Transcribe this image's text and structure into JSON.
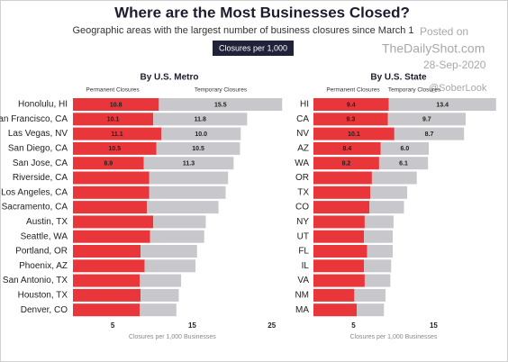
{
  "header": {
    "title": "Where are the Most Businesses Closed?",
    "subtitle": "Geographic areas with the largest number of business closures since March 1",
    "legend_label": "Closures per 1,000",
    "watermark": [
      "Posted on",
      "TheDailyShot.com",
      "28-Sep-2020",
      "@SoberLook"
    ]
  },
  "chart_data": [
    {
      "type": "stacked-barh",
      "title": "By U.S. Metro",
      "xlabel": "Closures per 1,000 Businesses",
      "categories": [
        "Honolulu, HI",
        "San Francisco, CA",
        "Las Vegas, NV",
        "San Diego, CA",
        "San Jose, CA",
        "Riverside, CA",
        "Los Angeles, CA",
        "Sacramento, CA",
        "Austin, TX",
        "Seattle, WA",
        "Portland, OR",
        "Phoenix, AZ",
        "San Antonio, TX",
        "Houston, TX",
        "Denver, CO"
      ],
      "series": [
        {
          "name": "Permanent Closures",
          "color": "#e8363a",
          "values": [
            10.8,
            10.1,
            11.1,
            10.5,
            8.9,
            9.6,
            9.6,
            9.3,
            10.1,
            9.7,
            8.5,
            9.0,
            8.4,
            8.5,
            8.4
          ],
          "value_labels": [
            "10.8",
            "10.1",
            "11.1",
            "10.5",
            "8.9",
            null,
            null,
            null,
            null,
            null,
            null,
            null,
            null,
            null,
            null
          ]
        },
        {
          "name": "Temporary Closures",
          "color": "#c8c8cc",
          "values": [
            15.5,
            11.8,
            10.0,
            10.5,
            11.3,
            9.9,
            9.6,
            9.0,
            6.6,
            6.8,
            7.1,
            6.4,
            5.2,
            4.8,
            4.6
          ],
          "value_labels": [
            "15.5",
            "11.8",
            "10.0",
            "10.5",
            "11.3",
            null,
            null,
            null,
            null,
            null,
            null,
            null,
            null,
            null,
            null
          ]
        }
      ],
      "xlim": [
        0,
        26.5
      ],
      "xticks": [
        5,
        15,
        25
      ]
    },
    {
      "type": "stacked-barh",
      "title": "By U.S. State",
      "xlabel": "Closures per 1,000 Businesses",
      "categories": [
        "HI",
        "CA",
        "NV",
        "AZ",
        "WA",
        "OR",
        "TX",
        "CO",
        "NY",
        "UT",
        "FL",
        "IL",
        "VA",
        "NM",
        "MA"
      ],
      "series": [
        {
          "name": "Permanent Closures",
          "color": "#e8363a",
          "values": [
            9.4,
            9.3,
            10.1,
            8.4,
            8.2,
            7.3,
            7.1,
            7.0,
            6.4,
            6.3,
            6.7,
            6.3,
            6.4,
            5.1,
            5.4
          ],
          "value_labels": [
            "9.4",
            "9.3",
            "10.1",
            "8.4",
            "8.2",
            null,
            null,
            null,
            null,
            null,
            null,
            null,
            null,
            null,
            null
          ]
        },
        {
          "name": "Temporary Closures",
          "color": "#c8c8cc",
          "values": [
            13.4,
            9.7,
            8.7,
            6.0,
            6.1,
            5.6,
            4.6,
            4.3,
            3.6,
            3.6,
            3.2,
            3.4,
            3.2,
            3.9,
            3.4
          ],
          "value_labels": [
            "13.4",
            "9.7",
            "8.7",
            "6.0",
            "6.1",
            null,
            null,
            null,
            null,
            null,
            null,
            null,
            null,
            null,
            null
          ]
        }
      ],
      "xlim": [
        0,
        23.5
      ],
      "xticks": [
        5,
        15
      ]
    }
  ]
}
